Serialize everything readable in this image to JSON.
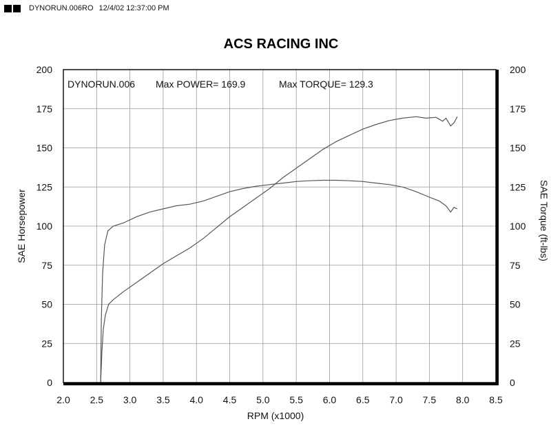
{
  "header": {
    "file": "DYNORUN.006RO",
    "datetime": "12/4/02 12:37:00 PM"
  },
  "chart_data": {
    "type": "line",
    "title": "ACS RACING INC",
    "info": {
      "run": "DYNORUN.006",
      "max_power_text": "Max POWER= 169.9",
      "max_torque_text": "Max TORQUE= 129.3"
    },
    "xlabel": "RPM (x1000)",
    "ylabel_left": "SAE Horsepower",
    "ylabel_right": "SAE Torque (ft-lbs)",
    "xlim": [
      2.0,
      8.5
    ],
    "ylim": [
      0,
      200
    ],
    "xticks": [
      "2.0",
      "2.5",
      "3.0",
      "3.5",
      "4.0",
      "4.5",
      "5.0",
      "5.5",
      "6.0",
      "6.5",
      "7.0",
      "7.5",
      "8.0",
      "8.5"
    ],
    "yticks_left": [
      "0",
      "25",
      "50",
      "75",
      "100",
      "125",
      "150",
      "175",
      "200"
    ],
    "yticks_right": [
      "0",
      "25",
      "50",
      "75",
      "100",
      "125",
      "150",
      "175",
      "200"
    ],
    "grid": true,
    "series": [
      {
        "name": "",
        "points": [
          [
            2.56,
            0
          ],
          [
            2.58,
            20
          ],
          [
            2.6,
            34
          ],
          [
            2.63,
            43
          ],
          [
            2.68,
            50
          ],
          [
            2.75,
            53
          ],
          [
            2.9,
            58
          ],
          [
            3.1,
            64
          ],
          [
            3.3,
            70
          ],
          [
            3.5,
            76
          ],
          [
            3.7,
            81
          ],
          [
            3.9,
            86
          ],
          [
            4.1,
            92
          ],
          [
            4.3,
            99
          ],
          [
            4.5,
            106
          ],
          [
            4.7,
            112
          ],
          [
            4.9,
            118
          ],
          [
            5.1,
            124
          ],
          [
            5.3,
            131
          ],
          [
            5.5,
            137
          ],
          [
            5.7,
            143
          ],
          [
            5.9,
            149
          ],
          [
            6.1,
            154
          ],
          [
            6.3,
            158
          ],
          [
            6.5,
            162
          ],
          [
            6.7,
            165
          ],
          [
            6.9,
            167.5
          ],
          [
            7.1,
            169
          ],
          [
            7.3,
            169.9
          ],
          [
            7.45,
            169
          ],
          [
            7.6,
            169.5
          ],
          [
            7.7,
            167
          ],
          [
            7.75,
            169
          ],
          [
            7.82,
            164
          ],
          [
            7.87,
            166
          ],
          [
            7.92,
            170
          ]
        ]
      },
      {
        "name": "",
        "points": [
          [
            2.56,
            0
          ],
          [
            2.57,
            40
          ],
          [
            2.59,
            70
          ],
          [
            2.62,
            88
          ],
          [
            2.67,
            97
          ],
          [
            2.75,
            100
          ],
          [
            2.9,
            102
          ],
          [
            3.1,
            106
          ],
          [
            3.3,
            109
          ],
          [
            3.5,
            111
          ],
          [
            3.7,
            113
          ],
          [
            3.9,
            114
          ],
          [
            4.1,
            116
          ],
          [
            4.3,
            119
          ],
          [
            4.5,
            122
          ],
          [
            4.7,
            124
          ],
          [
            4.9,
            125.5
          ],
          [
            5.1,
            126.5
          ],
          [
            5.3,
            127.5
          ],
          [
            5.5,
            128.5
          ],
          [
            5.7,
            129
          ],
          [
            5.9,
            129.3
          ],
          [
            6.1,
            129.3
          ],
          [
            6.3,
            129
          ],
          [
            6.5,
            128.5
          ],
          [
            6.7,
            127.5
          ],
          [
            6.9,
            126.5
          ],
          [
            7.1,
            125
          ],
          [
            7.3,
            122
          ],
          [
            7.5,
            118.5
          ],
          [
            7.65,
            116
          ],
          [
            7.75,
            113
          ],
          [
            7.82,
            109
          ],
          [
            7.87,
            112
          ],
          [
            7.92,
            111
          ]
        ]
      }
    ]
  }
}
